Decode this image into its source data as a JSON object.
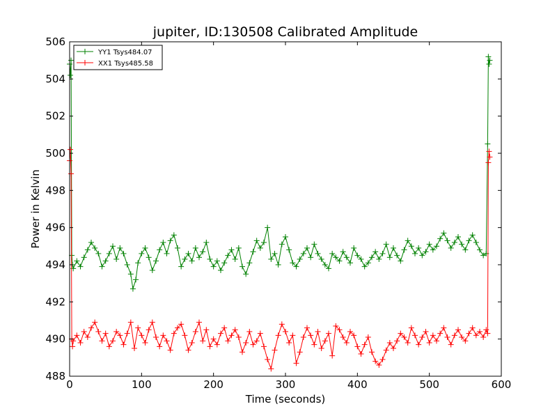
{
  "chart_data": {
    "type": "line",
    "title": "jupiter, ID:130508 Calibrated Amplitude",
    "xlabel": "Time (seconds)",
    "ylabel": "Power in Kelvin",
    "xlim": [
      0,
      600
    ],
    "ylim": [
      488,
      506
    ],
    "xticks": [
      0,
      100,
      200,
      300,
      400,
      500,
      600
    ],
    "yticks": [
      488,
      490,
      492,
      494,
      496,
      498,
      500,
      502,
      504,
      506
    ],
    "grid": false,
    "legend_position": "top-left",
    "series": [
      {
        "name": "YY1 Tsys484.07",
        "color": "#008000",
        "marker": "+",
        "x": [
          0,
          1,
          2,
          3,
          4,
          5,
          10,
          15,
          20,
          25,
          30,
          35,
          40,
          45,
          50,
          55,
          60,
          65,
          70,
          75,
          80,
          85,
          88,
          92,
          95,
          100,
          105,
          110,
          115,
          120,
          125,
          130,
          135,
          140,
          145,
          150,
          155,
          160,
          165,
          170,
          175,
          180,
          185,
          190,
          195,
          200,
          205,
          210,
          215,
          220,
          225,
          230,
          235,
          240,
          245,
          250,
          255,
          260,
          265,
          270,
          275,
          280,
          285,
          290,
          295,
          300,
          305,
          310,
          315,
          320,
          325,
          330,
          335,
          340,
          345,
          350,
          355,
          360,
          365,
          370,
          375,
          380,
          385,
          390,
          395,
          400,
          405,
          410,
          415,
          420,
          425,
          430,
          435,
          440,
          445,
          450,
          455,
          460,
          465,
          470,
          475,
          480,
          485,
          490,
          495,
          500,
          505,
          510,
          515,
          520,
          525,
          530,
          535,
          540,
          545,
          550,
          555,
          560,
          565,
          570,
          575,
          579,
          581,
          582,
          583,
          584
        ],
        "values": [
          504.8,
          504.2,
          505.0,
          494.5,
          494.0,
          493.8,
          494.2,
          493.9,
          494.4,
          494.8,
          495.2,
          494.9,
          494.6,
          493.9,
          494.2,
          494.6,
          495.0,
          494.3,
          494.9,
          494.6,
          494.0,
          493.5,
          492.7,
          493.2,
          494.1,
          494.6,
          494.9,
          494.4,
          493.7,
          494.2,
          494.8,
          495.2,
          494.6,
          495.3,
          495.6,
          494.9,
          493.9,
          494.3,
          494.6,
          494.2,
          494.9,
          494.4,
          494.7,
          495.2,
          494.3,
          493.9,
          494.2,
          493.7,
          494.1,
          494.5,
          494.8,
          494.3,
          494.9,
          493.9,
          493.5,
          494.1,
          494.7,
          495.3,
          494.9,
          495.2,
          496.0,
          494.3,
          494.6,
          494.0,
          495.1,
          495.5,
          494.8,
          494.1,
          493.9,
          494.3,
          494.6,
          494.9,
          494.4,
          495.1,
          494.6,
          494.3,
          494.0,
          493.8,
          494.6,
          494.4,
          494.2,
          494.7,
          494.4,
          494.1,
          494.9,
          494.5,
          494.3,
          493.9,
          494.1,
          494.4,
          494.7,
          494.3,
          494.6,
          495.1,
          494.4,
          494.9,
          494.5,
          494.2,
          494.8,
          495.3,
          495.0,
          494.6,
          494.9,
          494.5,
          494.7,
          495.1,
          494.8,
          495.0,
          495.4,
          495.7,
          495.3,
          494.9,
          495.2,
          495.5,
          495.1,
          494.8,
          495.3,
          495.6,
          495.2,
          494.8,
          494.5,
          494.6,
          500.5,
          505.2,
          504.8,
          505.0
        ]
      },
      {
        "name": "XX1 Tsys485.58",
        "color": "#ff0000",
        "marker": "+",
        "x": [
          0,
          1,
          2,
          3,
          4,
          5,
          10,
          15,
          20,
          25,
          30,
          35,
          40,
          45,
          50,
          55,
          60,
          65,
          70,
          75,
          80,
          85,
          90,
          95,
          100,
          105,
          110,
          115,
          120,
          125,
          130,
          135,
          140,
          145,
          150,
          155,
          160,
          165,
          170,
          175,
          180,
          185,
          190,
          195,
          200,
          205,
          210,
          215,
          220,
          225,
          230,
          235,
          240,
          245,
          250,
          255,
          260,
          265,
          270,
          275,
          280,
          285,
          290,
          295,
          300,
          305,
          310,
          315,
          320,
          325,
          330,
          335,
          340,
          345,
          350,
          355,
          360,
          365,
          370,
          375,
          380,
          385,
          390,
          395,
          400,
          405,
          410,
          415,
          420,
          425,
          430,
          435,
          440,
          445,
          450,
          455,
          460,
          465,
          470,
          475,
          480,
          485,
          490,
          495,
          500,
          505,
          510,
          515,
          520,
          525,
          530,
          535,
          540,
          545,
          550,
          555,
          560,
          565,
          570,
          575,
          579,
          581,
          582,
          583,
          584
        ],
        "values": [
          499.6,
          500.2,
          498.9,
          490.0,
          489.6,
          489.9,
          490.2,
          489.8,
          490.4,
          490.1,
          490.6,
          490.9,
          490.4,
          489.9,
          490.3,
          489.6,
          489.9,
          490.4,
          490.2,
          489.7,
          490.3,
          490.9,
          489.5,
          490.6,
          490.2,
          489.8,
          490.5,
          490.9,
          490.1,
          489.6,
          490.2,
          489.9,
          489.4,
          490.3,
          490.6,
          490.8,
          490.2,
          489.4,
          489.8,
          490.4,
          490.9,
          489.9,
          490.5,
          489.6,
          490.0,
          489.7,
          490.3,
          490.6,
          489.9,
          490.2,
          490.5,
          490.1,
          489.3,
          489.8,
          490.4,
          489.7,
          489.9,
          490.3,
          489.6,
          488.9,
          488.4,
          489.4,
          490.2,
          490.8,
          490.4,
          489.8,
          490.2,
          488.7,
          489.3,
          490.1,
          490.6,
          490.2,
          489.7,
          490.4,
          489.5,
          489.9,
          490.3,
          489.1,
          490.7,
          490.5,
          490.1,
          489.8,
          490.4,
          490.2,
          489.6,
          489.2,
          489.7,
          490.1,
          489.3,
          488.8,
          488.6,
          488.9,
          489.4,
          489.8,
          489.5,
          489.9,
          490.3,
          490.1,
          489.8,
          490.6,
          490.2,
          489.7,
          490.1,
          490.4,
          489.8,
          490.2,
          489.9,
          490.3,
          490.6,
          490.1,
          489.7,
          490.2,
          490.5,
          490.1,
          489.9,
          490.3,
          490.6,
          490.2,
          490.4,
          490.1,
          490.5,
          490.3,
          499.5,
          500.1,
          499.8
        ]
      }
    ]
  }
}
